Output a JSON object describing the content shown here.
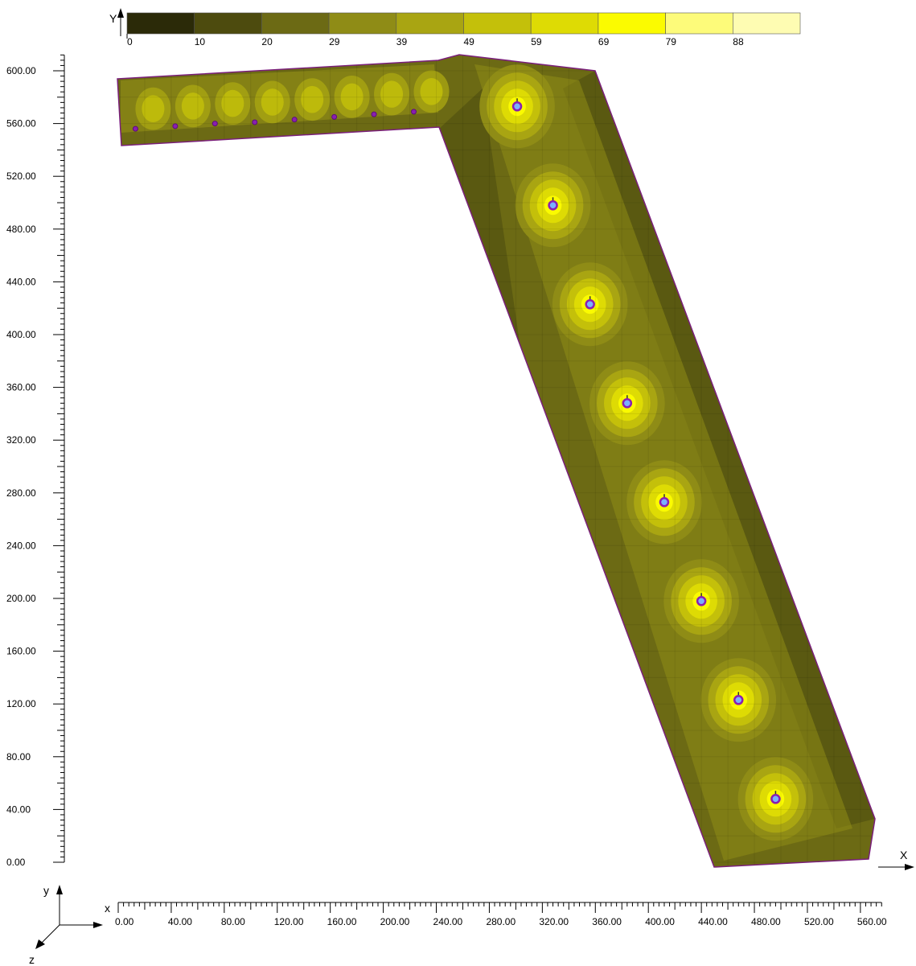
{
  "plot": {
    "x_axis_range": [
      0,
      560
    ],
    "y_axis_range": [
      0,
      600
    ],
    "x_ticks_major": [
      "0.00",
      "40.00",
      "80.00",
      "120.00",
      "160.00",
      "200.00",
      "240.00",
      "280.00",
      "320.00",
      "360.00",
      "400.00",
      "440.00",
      "480.00",
      "520.00",
      "560.00"
    ],
    "y_ticks_major": [
      "0.00",
      "40.00",
      "80.00",
      "120.00",
      "160.00",
      "200.00",
      "240.00",
      "280.00",
      "320.00",
      "360.00",
      "400.00",
      "440.00",
      "480.00",
      "520.00",
      "560.00",
      "600.00"
    ],
    "x_axis_letter": "X",
    "y_axis_letter": "Y"
  },
  "legend": {
    "labels": [
      "0",
      "10",
      "20",
      "29",
      "39",
      "49",
      "59",
      "69",
      "79",
      "88"
    ],
    "colors": [
      "#2b2a08",
      "#4d4b0e",
      "#6c6a14",
      "#8f8c16",
      "#a9a512",
      "#c4c00a",
      "#dedb04",
      "#fbfb00",
      "#fdfb7a",
      "#fefcb2"
    ]
  },
  "triad": {
    "x": "x",
    "y": "y",
    "z": "z"
  },
  "colors": {
    "outline": "#7a1f7a",
    "marker": "#8a1fb0",
    "axis": "#000000"
  },
  "columns": [
    {
      "x": 301,
      "y": 573
    },
    {
      "x": 328,
      "y": 498
    },
    {
      "x": 356,
      "y": 423
    },
    {
      "x": 384,
      "y": 348
    },
    {
      "x": 412,
      "y": 273
    },
    {
      "x": 440,
      "y": 198
    },
    {
      "x": 468,
      "y": 123
    },
    {
      "x": 496,
      "y": 48
    }
  ],
  "small_points": [
    {
      "x": 13,
      "y": 556
    },
    {
      "x": 43,
      "y": 558
    },
    {
      "x": 73,
      "y": 560
    },
    {
      "x": 103,
      "y": 561
    },
    {
      "x": 133,
      "y": 563
    },
    {
      "x": 163,
      "y": 565
    },
    {
      "x": 193,
      "y": 567
    },
    {
      "x": 223,
      "y": 569
    }
  ]
}
